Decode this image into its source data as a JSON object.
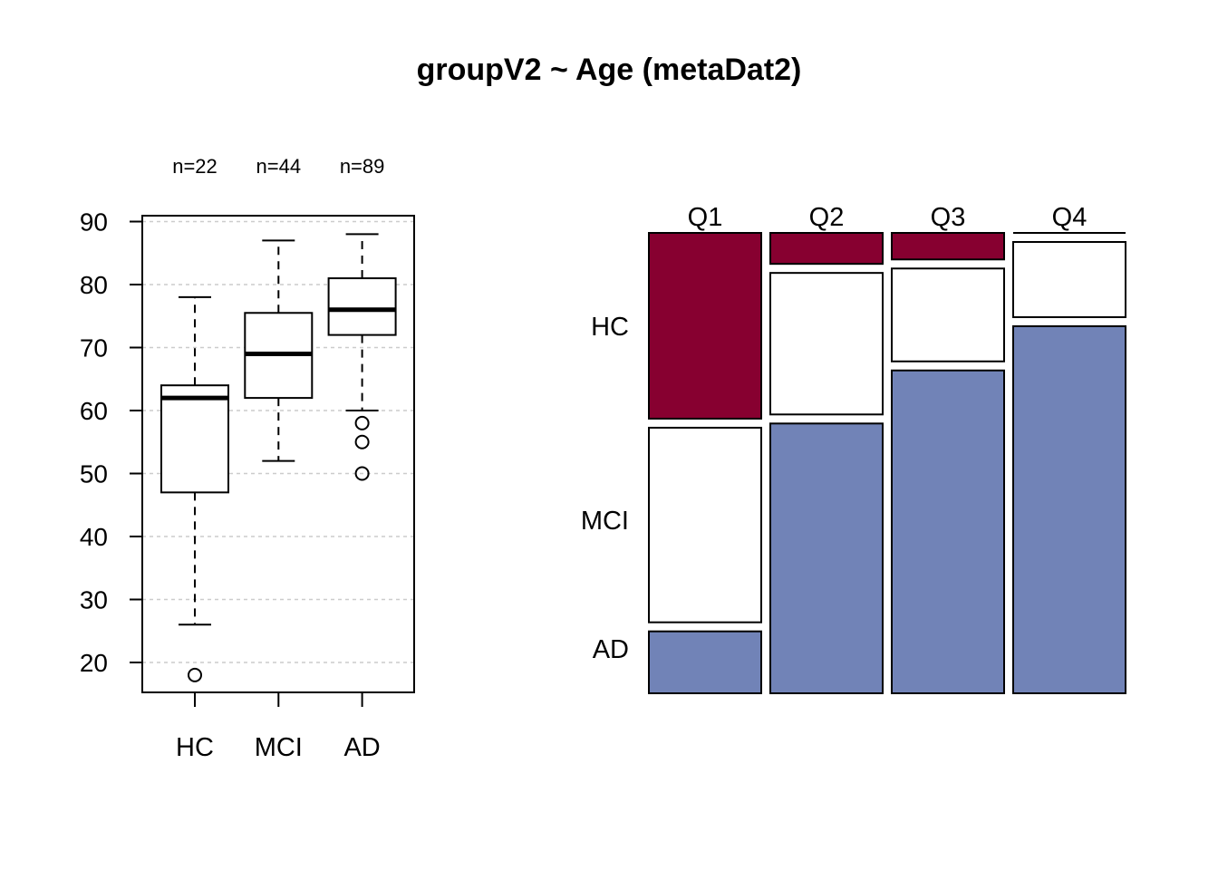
{
  "title": "groupV2 ~ Age (metaDat2)",
  "colors": {
    "hc": "#870030",
    "mci": "#ffffff",
    "ad": "#7183b7",
    "grid": "#cccccc"
  },
  "chart_data": [
    {
      "type": "boxplot",
      "categories": [
        "HC",
        "MCI",
        "AD"
      ],
      "counts": [
        "n=22",
        "n=44",
        "n=89"
      ],
      "ylim": [
        15,
        90
      ],
      "yticks": [
        20,
        30,
        40,
        50,
        60,
        70,
        80,
        90
      ],
      "grid": true,
      "boxes": [
        {
          "name": "HC",
          "whisker_low": 26,
          "q1": 47,
          "median": 62,
          "q3": 64,
          "whisker_high": 78,
          "outliers": [
            18
          ]
        },
        {
          "name": "MCI",
          "whisker_low": 52,
          "q1": 62,
          "median": 69,
          "q3": 75.5,
          "whisker_high": 87,
          "outliers": []
        },
        {
          "name": "AD",
          "whisker_low": 60,
          "q1": 72,
          "median": 76,
          "q3": 81,
          "whisker_high": 88,
          "outliers": [
            58,
            55,
            50
          ]
        }
      ]
    },
    {
      "type": "mosaic",
      "columns": [
        "Q1",
        "Q2",
        "Q3",
        "Q4"
      ],
      "rows": [
        "HC",
        "MCI",
        "AD"
      ],
      "proportions": [
        {
          "col": "Q1",
          "HC": 0.42,
          "MCI": 0.44,
          "AD": 0.14
        },
        {
          "col": "Q2",
          "HC": 0.07,
          "MCI": 0.32,
          "AD": 0.61
        },
        {
          "col": "Q3",
          "HC": 0.06,
          "MCI": 0.21,
          "AD": 0.73
        },
        {
          "col": "Q4",
          "HC": 0.0,
          "MCI": 0.17,
          "AD": 0.83
        }
      ]
    }
  ]
}
